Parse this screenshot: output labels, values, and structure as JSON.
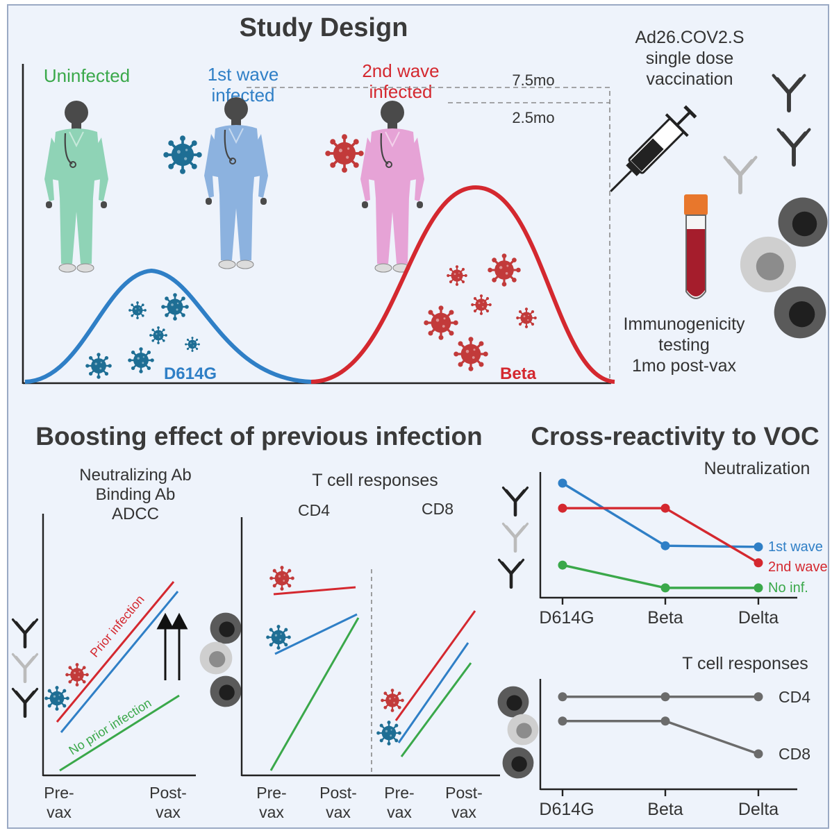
{
  "title": "Study Design",
  "groups": {
    "uninfected": {
      "label": "Uninfected",
      "color": "#3aa84a"
    },
    "first_wave": {
      "label_line1": "1st wave",
      "label_line2": "infected",
      "color": "#2f7fc6"
    },
    "second_wave": {
      "label_line1": "2nd wave",
      "label_line2": "infected",
      "color": "#d4282f"
    }
  },
  "timeline": {
    "long_interval": "7.5mo",
    "short_interval": "2.5mo"
  },
  "waves": {
    "first": "D614G",
    "second": "Beta"
  },
  "vaccination": {
    "line1": "Ad26.COV2.S",
    "line2": "single dose",
    "line3": "vaccination"
  },
  "testing": {
    "line1": "Immunogenicity",
    "line2": "testing",
    "line3": "1mo post-vax"
  },
  "boosting": {
    "title": "Boosting effect of previous infection",
    "panel1_line1": "Neutralizing Ab",
    "panel1_line2": "Binding Ab",
    "panel1_line3": "ADCC",
    "prior_label": "Prior infection",
    "no_prior_label": "No prior infection",
    "tcell_title": "T cell responses",
    "cd4": "CD4",
    "cd8": "CD8",
    "pre_line1": "Pre-",
    "pre_line2": "vax",
    "post_line1": "Post-",
    "post_line2": "vax"
  },
  "cross": {
    "title": "Cross-reactivity to VOC",
    "neut_title": "Neutralization",
    "tcell_title": "T cell responses",
    "categories": [
      "D614G",
      "Beta",
      "Delta"
    ],
    "neut_series": [
      {
        "name": "1st wave",
        "values": [
          100,
          45,
          44
        ],
        "color": "#2f7fc6"
      },
      {
        "name": "2nd wave",
        "values": [
          78,
          78,
          30
        ],
        "color": "#d4282f"
      },
      {
        "name": "No inf.",
        "values": [
          28,
          8,
          8
        ],
        "color": "#3aa84a"
      }
    ],
    "tcell_series": [
      {
        "name": "CD4",
        "values": [
          75,
          75,
          75
        ],
        "color": "#6b6b6b"
      },
      {
        "name": "CD8",
        "values": [
          55,
          55,
          28
        ],
        "color": "#6b6b6b"
      }
    ]
  },
  "colors": {
    "d614g_virus": "#1e6e94",
    "beta_virus": "#c23a3a",
    "frame_bg": "#eef3fb"
  }
}
